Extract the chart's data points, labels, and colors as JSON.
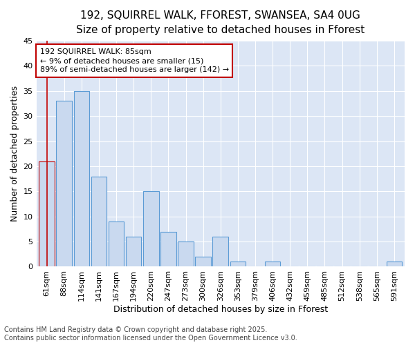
{
  "title_line1": "192, SQUIRREL WALK, FFOREST, SWANSEA, SA4 0UG",
  "title_line2": "Size of property relative to detached houses in Fforest",
  "xlabel": "Distribution of detached houses by size in Fforest",
  "ylabel": "Number of detached properties",
  "categories": [
    "61sqm",
    "88sqm",
    "114sqm",
    "141sqm",
    "167sqm",
    "194sqm",
    "220sqm",
    "247sqm",
    "273sqm",
    "300sqm",
    "326sqm",
    "353sqm",
    "379sqm",
    "406sqm",
    "432sqm",
    "459sqm",
    "485sqm",
    "512sqm",
    "538sqm",
    "565sqm",
    "591sqm"
  ],
  "values": [
    21,
    33,
    35,
    18,
    9,
    6,
    15,
    7,
    5,
    2,
    6,
    1,
    0,
    1,
    0,
    0,
    0,
    0,
    0,
    0,
    1
  ],
  "bar_color": "#c9d9ef",
  "bar_edge_color": "#5b9bd5",
  "highlight_bar_index": 0,
  "highlight_edge_color": "#c00000",
  "annotation_text": "192 SQUIRREL WALK: 85sqm\n← 9% of detached houses are smaller (15)\n89% of semi-detached houses are larger (142) →",
  "annotation_fontsize": 8,
  "ylim": [
    0,
    45
  ],
  "yticks": [
    0,
    5,
    10,
    15,
    20,
    25,
    30,
    35,
    40,
    45
  ],
  "vline_x": 0,
  "vline_color": "#c00000",
  "footer_line1": "Contains HM Land Registry data © Crown copyright and database right 2025.",
  "footer_line2": "Contains public sector information licensed under the Open Government Licence v3.0.",
  "bg_color": "#ffffff",
  "plot_bg_color": "#dce6f5",
  "grid_color": "#ffffff",
  "title_fontsize": 11,
  "subtitle_fontsize": 10,
  "axis_fontsize": 9,
  "tick_fontsize": 8,
  "footer_fontsize": 7
}
